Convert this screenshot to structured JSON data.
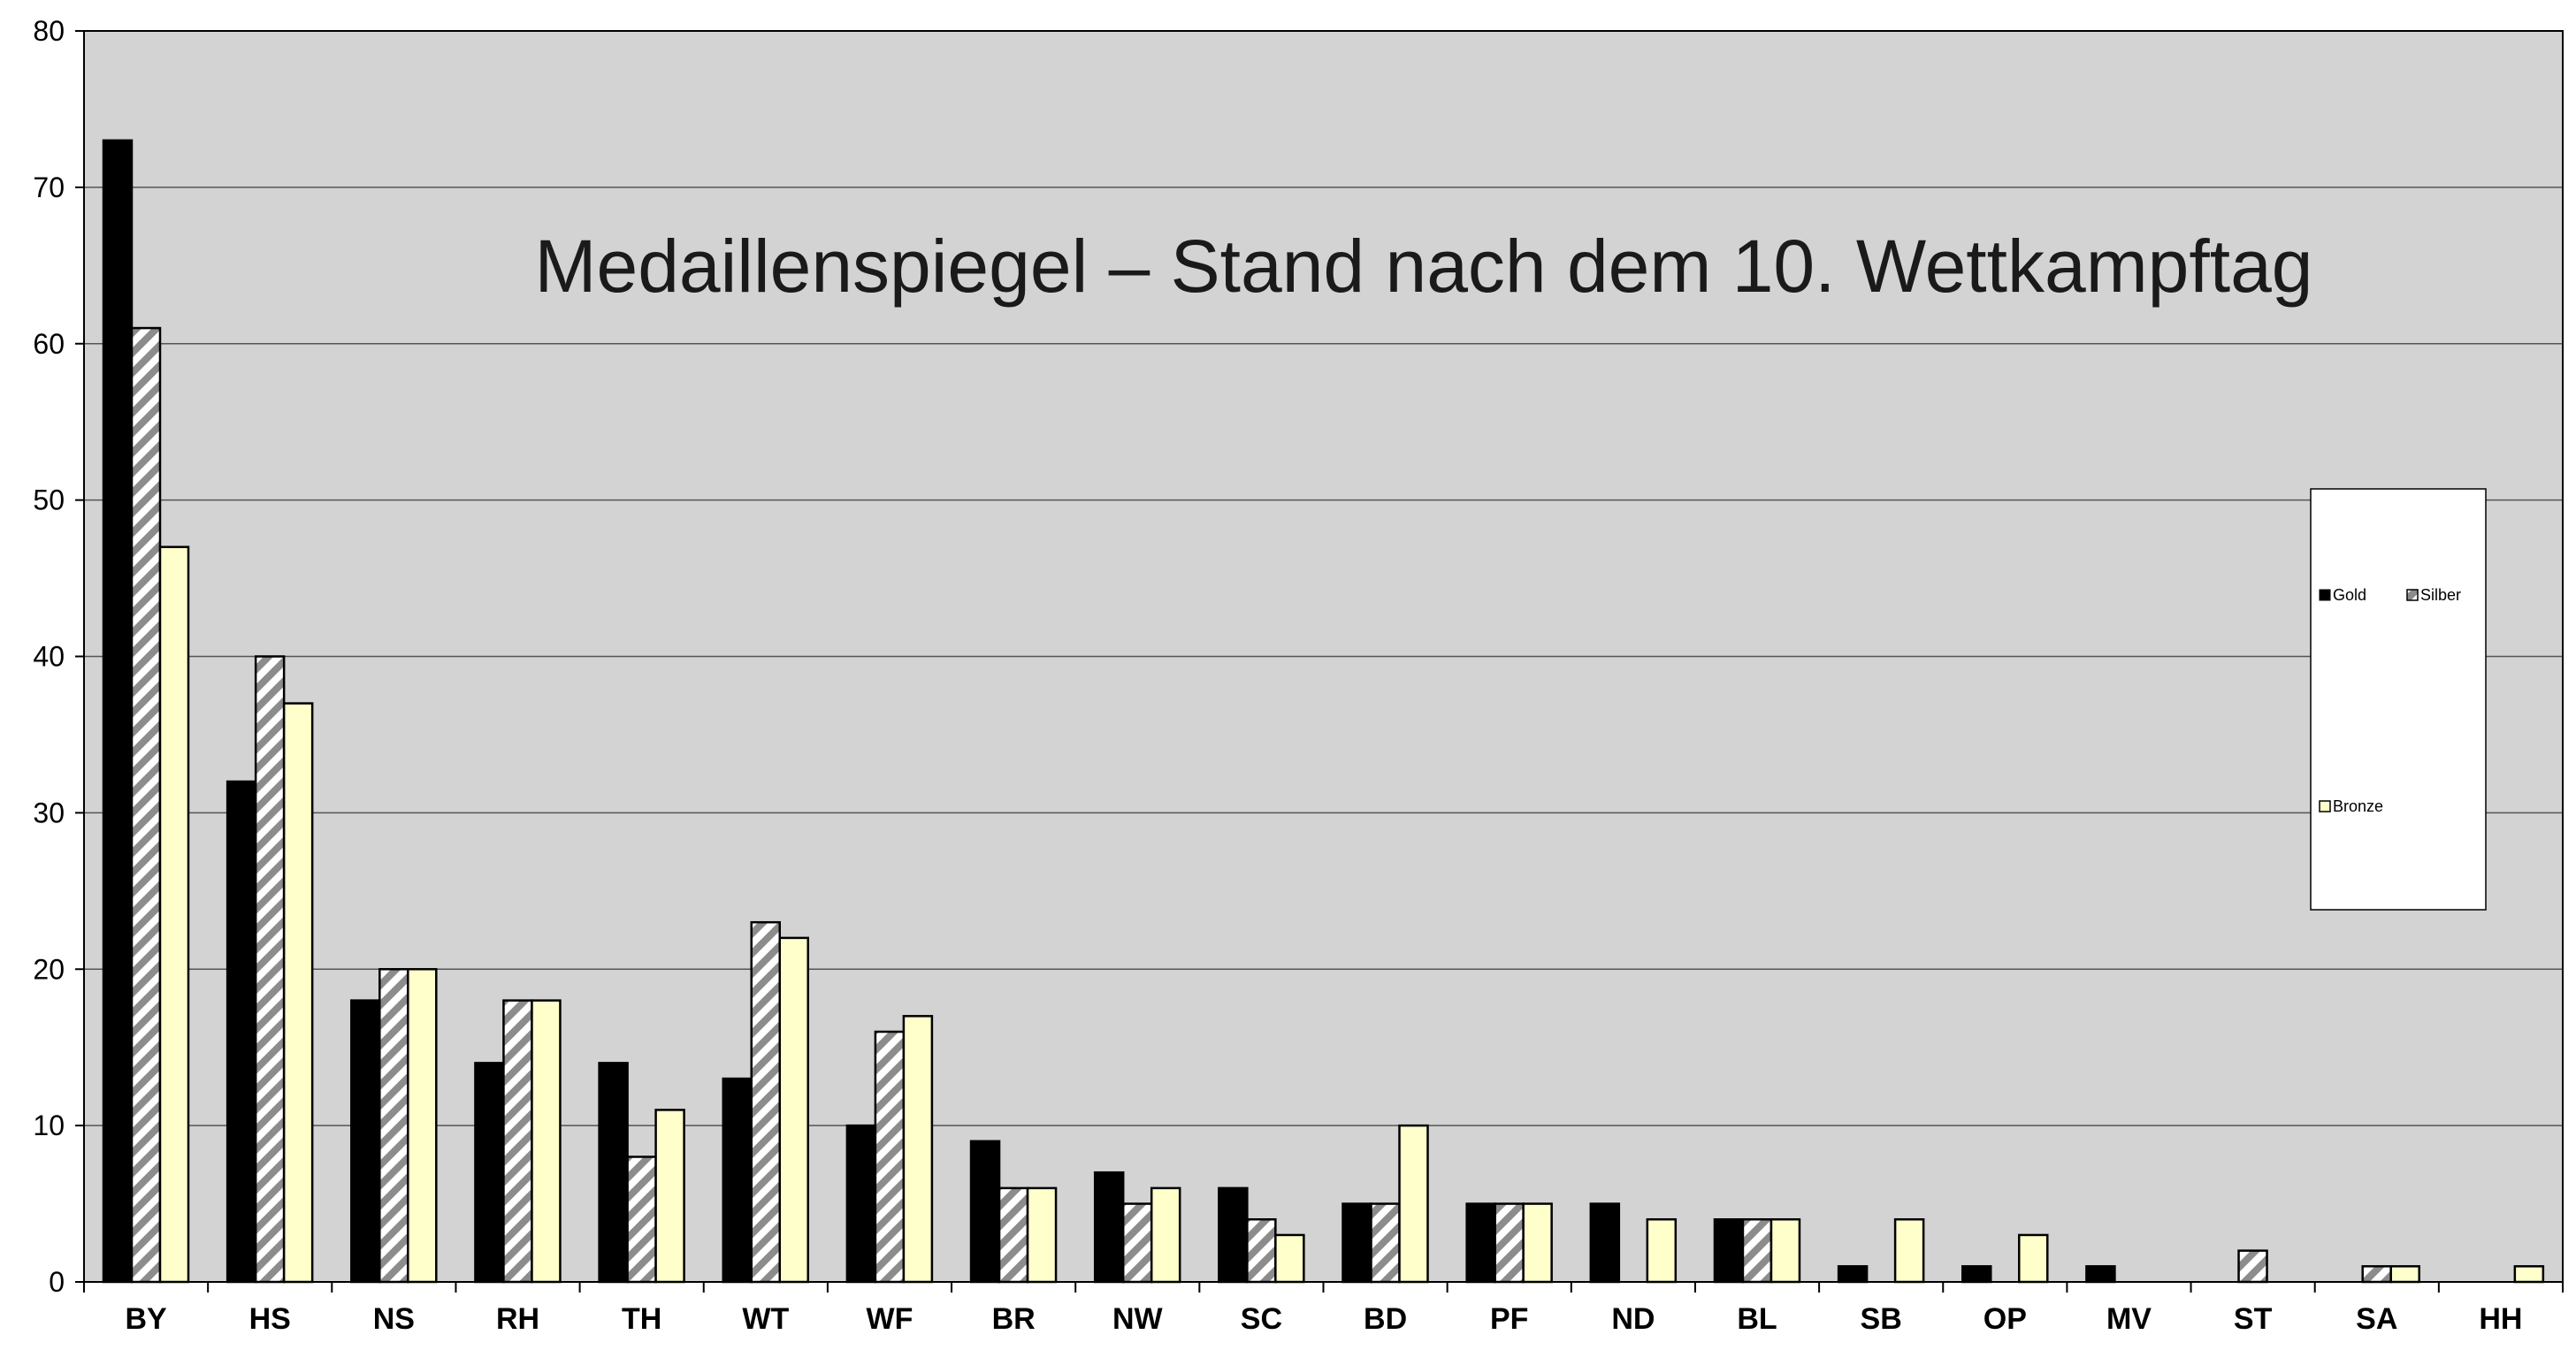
{
  "chart_data": {
    "type": "bar",
    "title": "Medaillenspiegel – Stand nach dem 10. Wettkampftag",
    "xlabel": "",
    "ylabel": "",
    "ylim": [
      0,
      80
    ],
    "yticks": [
      0,
      10,
      20,
      30,
      40,
      50,
      60,
      70,
      80
    ],
    "grid": true,
    "legend_position": "right",
    "categories": [
      "BY",
      "HS",
      "NS",
      "RH",
      "TH",
      "WT",
      "WF",
      "BR",
      "NW",
      "SC",
      "BD",
      "PF",
      "ND",
      "BL",
      "SB",
      "OP",
      "MV",
      "ST",
      "SA",
      "HH"
    ],
    "series": [
      {
        "name": "Gold",
        "color": "#000000",
        "pattern": "solid",
        "values": [
          73,
          32,
          18,
          14,
          14,
          13,
          10,
          9,
          7,
          6,
          5,
          5,
          5,
          4,
          1,
          1,
          1,
          0,
          0,
          0
        ]
      },
      {
        "name": "Silber",
        "color": "#8c8c8c",
        "pattern": "diagonal-stripes",
        "values": [
          61,
          40,
          20,
          18,
          8,
          23,
          16,
          6,
          5,
          4,
          5,
          5,
          0,
          4,
          0,
          0,
          0,
          2,
          1,
          0
        ]
      },
      {
        "name": "Bronze",
        "color": "#ffffcc",
        "pattern": "solid",
        "values": [
          47,
          37,
          20,
          18,
          11,
          22,
          17,
          6,
          6,
          3,
          10,
          5,
          4,
          4,
          4,
          3,
          0,
          0,
          1,
          1
        ]
      }
    ],
    "plot_background": "#d3d3d3",
    "gridline_color": "#555555"
  }
}
